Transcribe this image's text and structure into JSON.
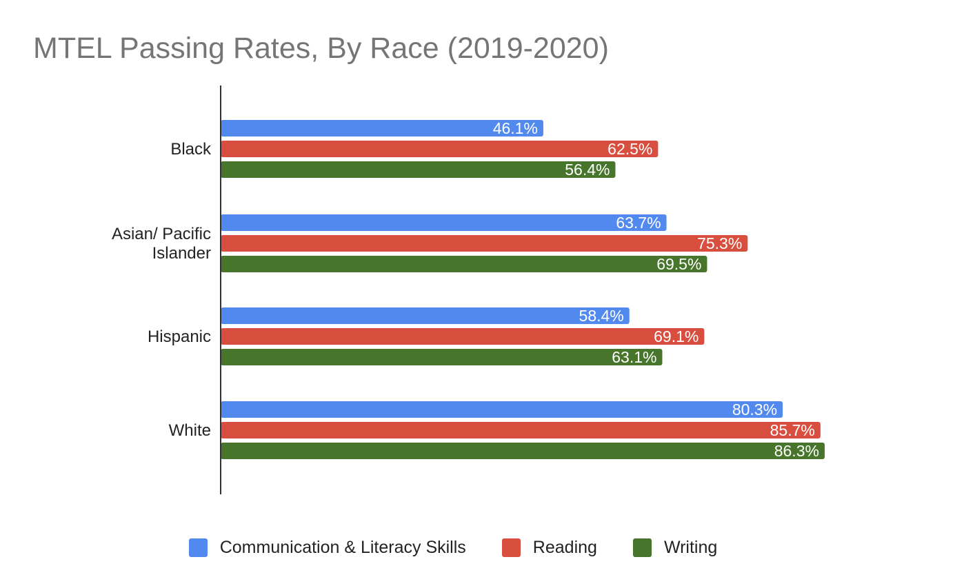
{
  "chart_data": {
    "type": "bar",
    "orientation": "horizontal",
    "title": "MTEL Passing Rates, By Race (2019-2020)",
    "categories": [
      "Black",
      "Asian/ Pacific Islander",
      "Hispanic",
      "White"
    ],
    "category_lines": [
      [
        "Black"
      ],
      [
        "Asian/ Pacific",
        "Islander"
      ],
      [
        "Hispanic"
      ],
      [
        "White"
      ]
    ],
    "series": [
      {
        "name": "Communication & Literacy Skills",
        "color": "#5289ee",
        "values": [
          46.1,
          63.7,
          58.4,
          80.3
        ],
        "labels": [
          "46.1%",
          "63.7%",
          "58.4%",
          "80.3%"
        ]
      },
      {
        "name": "Reading",
        "color": "#d94f3f",
        "values": [
          62.5,
          75.3,
          69.1,
          85.7
        ],
        "labels": [
          "62.5%",
          "75.3%",
          "69.1%",
          "85.7%"
        ]
      },
      {
        "name": "Writing",
        "color": "#47752b",
        "values": [
          56.4,
          69.5,
          63.1,
          86.3
        ],
        "labels": [
          "56.4%",
          "69.5%",
          "63.1%",
          "86.3%"
        ]
      }
    ],
    "xlim": [
      0,
      100
    ],
    "grid": false,
    "data_labels": true,
    "legend_position": "bottom"
  }
}
